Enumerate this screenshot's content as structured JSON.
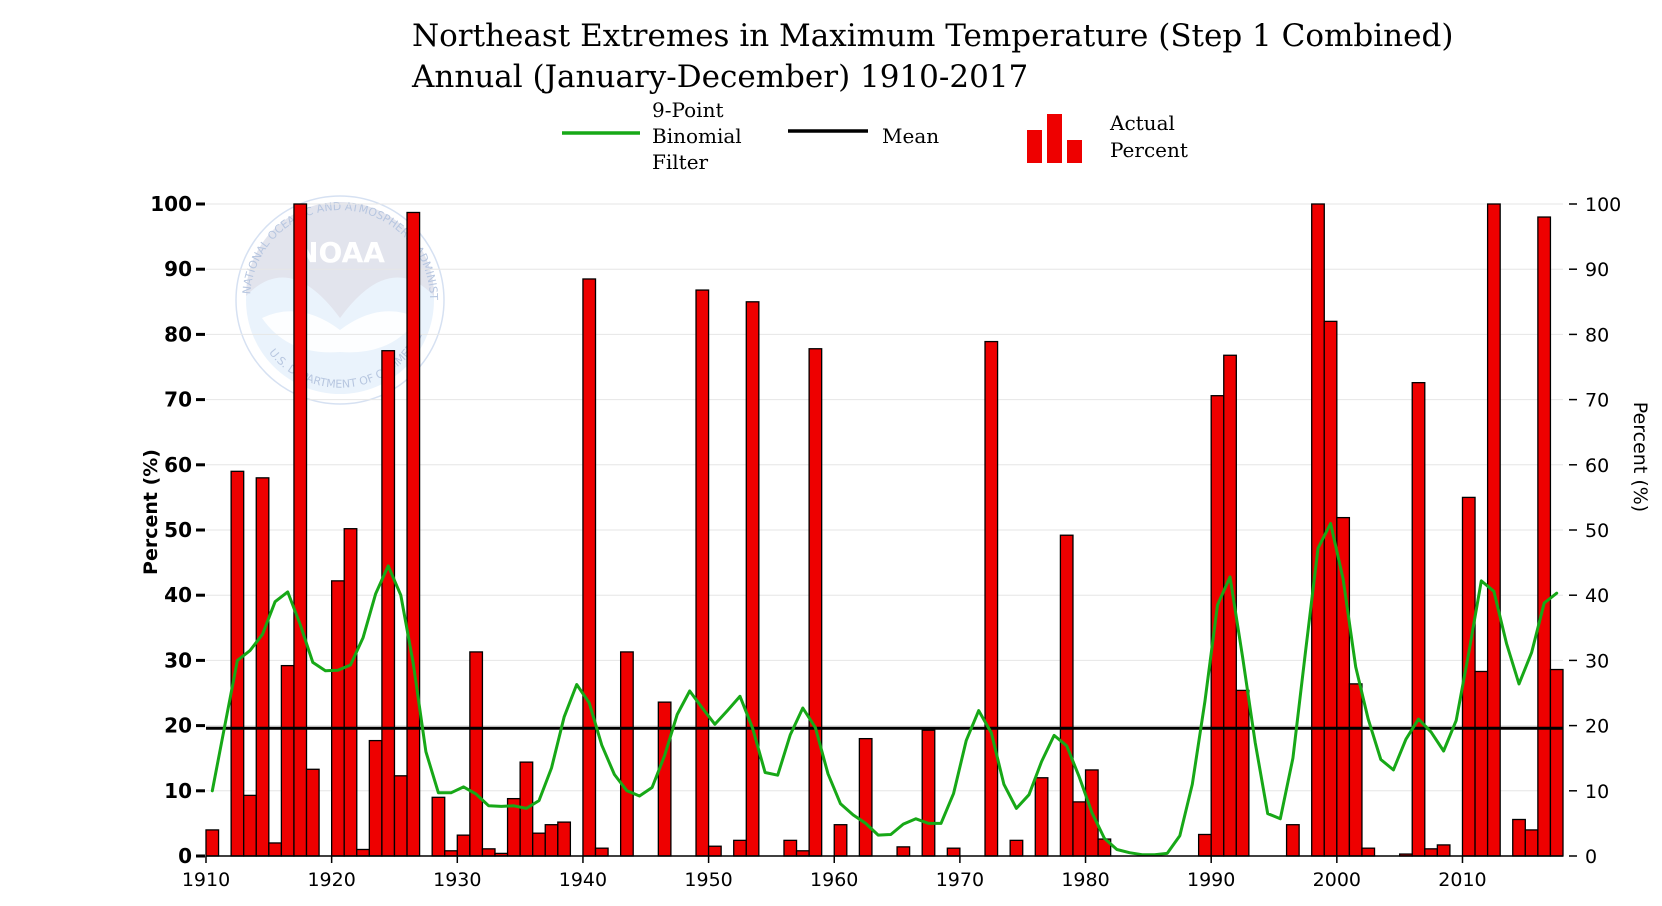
{
  "chart_data": {
    "type": "bar",
    "title": "Northeast Extremes in Maximum Temperature (Step 1 Combined)",
    "subtitle": "Annual (January-December) 1910-2017",
    "ylabel": "Percent (%)",
    "ylabel_right": "Percent (%)",
    "xlabel": "",
    "xlim": [
      1910,
      2018
    ],
    "ylim": [
      0,
      100
    ],
    "x_ticks": [
      1910,
      1920,
      1930,
      1940,
      1950,
      1960,
      1970,
      1980,
      1990,
      2000,
      2010
    ],
    "y_ticks": [
      0,
      10,
      20,
      30,
      40,
      50,
      60,
      70,
      80,
      90,
      100
    ],
    "grid": true,
    "legend": {
      "placement": "top-center",
      "filter_label_lines": [
        "9-Point",
        "Binomial",
        "Filter"
      ],
      "mean_label": "Mean",
      "bars_label_lines": [
        "Actual",
        "Percent"
      ]
    },
    "colors": {
      "bars": "#ee0000",
      "filter": "#17a817",
      "mean": "#000000"
    },
    "watermark": {
      "logo_text": "NOAA",
      "ring_text_top": "NATIONAL OCEANIC AND ATMOSPHERIC ADMINISTRATION",
      "ring_text_bottom": "U.S. DEPARTMENT OF COMMERCE"
    },
    "mean": 19.6,
    "years": [
      1910,
      1911,
      1912,
      1913,
      1914,
      1915,
      1916,
      1917,
      1918,
      1919,
      1920,
      1921,
      1922,
      1923,
      1924,
      1925,
      1926,
      1927,
      1928,
      1929,
      1930,
      1931,
      1932,
      1933,
      1934,
      1935,
      1936,
      1937,
      1938,
      1939,
      1940,
      1941,
      1942,
      1943,
      1944,
      1945,
      1946,
      1947,
      1948,
      1949,
      1950,
      1951,
      1952,
      1953,
      1954,
      1955,
      1956,
      1957,
      1958,
      1959,
      1960,
      1961,
      1962,
      1963,
      1964,
      1965,
      1966,
      1967,
      1968,
      1969,
      1970,
      1971,
      1972,
      1973,
      1974,
      1975,
      1976,
      1977,
      1978,
      1979,
      1980,
      1981,
      1982,
      1983,
      1984,
      1985,
      1986,
      1987,
      1988,
      1989,
      1990,
      1991,
      1992,
      1993,
      1994,
      1995,
      1996,
      1997,
      1998,
      1999,
      2000,
      2001,
      2002,
      2003,
      2004,
      2005,
      2006,
      2007,
      2008,
      2009,
      2010,
      2011,
      2012,
      2013,
      2014,
      2015,
      2016,
      2017
    ],
    "values": [
      4,
      0,
      59,
      9.3,
      58,
      2,
      29.2,
      100,
      13.3,
      0,
      42.2,
      50.2,
      1,
      17.7,
      77.5,
      12.3,
      98.7,
      0,
      9,
      0.8,
      3.2,
      31.3,
      1.1,
      0.4,
      8.8,
      14.4,
      3.5,
      4.8,
      5.2,
      0,
      88.5,
      1.2,
      0,
      31.3,
      0,
      0,
      23.6,
      0,
      0,
      86.8,
      1.5,
      0,
      2.4,
      85,
      0,
      0,
      2.4,
      0.8,
      77.8,
      0,
      4.8,
      0,
      18,
      0,
      0,
      1.4,
      0,
      19.3,
      0,
      1.2,
      0,
      0,
      78.9,
      0,
      2.4,
      0,
      12,
      0,
      49.2,
      8.3,
      13.2,
      2.6,
      0,
      0,
      0,
      0,
      0,
      0,
      0,
      3.3,
      70.6,
      76.8,
      25.4,
      0,
      0,
      0,
      4.8,
      0,
      100,
      82,
      51.9,
      26.4,
      1.2,
      0,
      0,
      0.3,
      72.6,
      1.1,
      1.7,
      0,
      55,
      28.3,
      100,
      0,
      5.6,
      4,
      98,
      28.6
    ],
    "filter_x": [
      1910,
      1911,
      1912,
      1913,
      1914,
      1915,
      1916,
      1917,
      1918,
      1919,
      1920,
      1921,
      1922,
      1923,
      1924,
      1925,
      1926,
      1927,
      1928,
      1929,
      1930,
      1931,
      1932,
      1933,
      1934,
      1935,
      1936,
      1937,
      1938,
      1939,
      1940,
      1941,
      1942,
      1943,
      1944,
      1945,
      1946,
      1947,
      1948,
      1949,
      1950,
      1951,
      1952,
      1953,
      1954,
      1955,
      1956,
      1957,
      1958,
      1959,
      1960,
      1961,
      1962,
      1963,
      1964,
      1965,
      1966,
      1967,
      1968,
      1969,
      1970,
      1971,
      1972,
      1973,
      1974,
      1975,
      1976,
      1977,
      1978,
      1979,
      1980,
      1981,
      1982,
      1983,
      1984,
      1985,
      1986,
      1987,
      1988,
      1989,
      1990,
      1991,
      1992,
      1993,
      1994,
      1995,
      1996,
      1997,
      1998,
      1999,
      2000,
      2001,
      2002,
      2003,
      2004,
      2005,
      2006,
      2007,
      2008,
      2009,
      2010,
      2011,
      2012,
      2013,
      2014,
      2015,
      2016,
      2017
    ],
    "filter_y": [
      10,
      20,
      30,
      31.5,
      34,
      39,
      40.5,
      35.5,
      29.7,
      28.4,
      28.5,
      29.3,
      33.5,
      40.2,
      44.5,
      40,
      29.5,
      16,
      9.7,
      9.7,
      10.6,
      9.5,
      7.7,
      7.6,
      7.7,
      7.3,
      8.5,
      13.5,
      21.3,
      26.3,
      23.5,
      17,
      12.5,
      10,
      9.2,
      10.5,
      15.4,
      21.7,
      25.3,
      22.7,
      20.2,
      22.3,
      24.5,
      19.6,
      12.8,
      12.4,
      18.6,
      22.7,
      19.7,
      12.6,
      8,
      6.3,
      5,
      3.2,
      3.3,
      4.9,
      5.7,
      5,
      5,
      9.6,
      17.7,
      22.3,
      18.9,
      11,
      7.3,
      9.4,
      14.5,
      18.5,
      16.9,
      12.1,
      6.7,
      2.7,
      1,
      0.5,
      0.2,
      0.2,
      0.4,
      3.1,
      11,
      23.7,
      38.5,
      42.8,
      30.5,
      17.4,
      6.5,
      5.7,
      15,
      31.2,
      47.2,
      51,
      42.5,
      29,
      21,
      14.8,
      13.2,
      17.9,
      21,
      19,
      16.1,
      20.8,
      31.2,
      42.2,
      40.6,
      32.6,
      26.4,
      31.2,
      38.8,
      40.3
    ]
  }
}
